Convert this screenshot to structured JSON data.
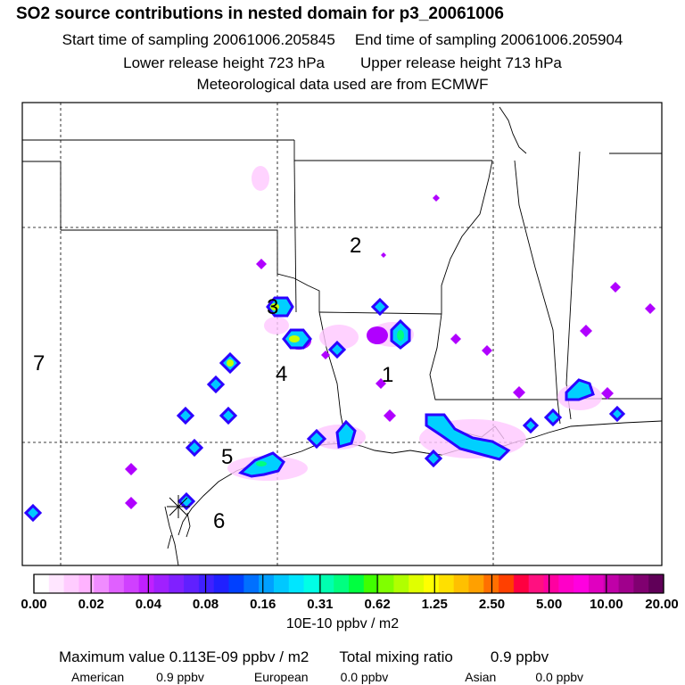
{
  "header": {
    "title": "SO2 source contributions in nested domain for p3_20061006",
    "start_time": "Start time of sampling 20061006.205845",
    "end_time": "End time of sampling 20061006.205904",
    "lower_release": "Lower release height  723 hPa",
    "upper_release": "Upper release height  713 hPa",
    "met_source": "Meteorological data used are from ECMWF"
  },
  "map": {
    "region_labels": [
      "1",
      "2",
      "3",
      "4",
      "5",
      "6",
      "7"
    ],
    "colors": {
      "border": "#000000",
      "grid": "#000000",
      "background": "#ffffff"
    }
  },
  "colorbar": {
    "tick_labels": [
      "0.00",
      "0.02",
      "0.04",
      "0.08",
      "0.16",
      "0.31",
      "0.62",
      "1.25",
      "2.50",
      "5.00",
      "10.00",
      "20.00"
    ],
    "unit": "10E-10 ppbv / m2",
    "colors": [
      "#ffffff",
      "#ffe6ff",
      "#ffccff",
      "#ffb3ff",
      "#f08cff",
      "#e060ff",
      "#d040ff",
      "#c020ff",
      "#a020ff",
      "#8020ff",
      "#6020ff",
      "#4020ff",
      "#2020ff",
      "#0040ff",
      "#0070ff",
      "#00a0ff",
      "#00c8ff",
      "#00e6ff",
      "#00ffe6",
      "#00ffb0",
      "#00ff80",
      "#00ff40",
      "#40ff00",
      "#80ff00",
      "#b0ff00",
      "#e0ff00",
      "#ffff00",
      "#ffe000",
      "#ffc000",
      "#ffa000",
      "#ff7000",
      "#ff4000",
      "#ff0040",
      "#ff1080",
      "#ff00a0",
      "#ff00c8",
      "#ff00e0",
      "#e000c0",
      "#c000a8",
      "#a0008c",
      "#800070",
      "#600058"
    ]
  },
  "summary": {
    "max_label": "Maximum value  0.113E-09 ppbv / m2",
    "total_label": "Total mixing ratio",
    "total_value": "0.9 ppbv",
    "american_label": "American",
    "american_value": "0.9 ppbv",
    "european_label": "European",
    "european_value": "0.0 ppbv",
    "asian_label": "Asian",
    "asian_value": "0.0 ppbv"
  }
}
